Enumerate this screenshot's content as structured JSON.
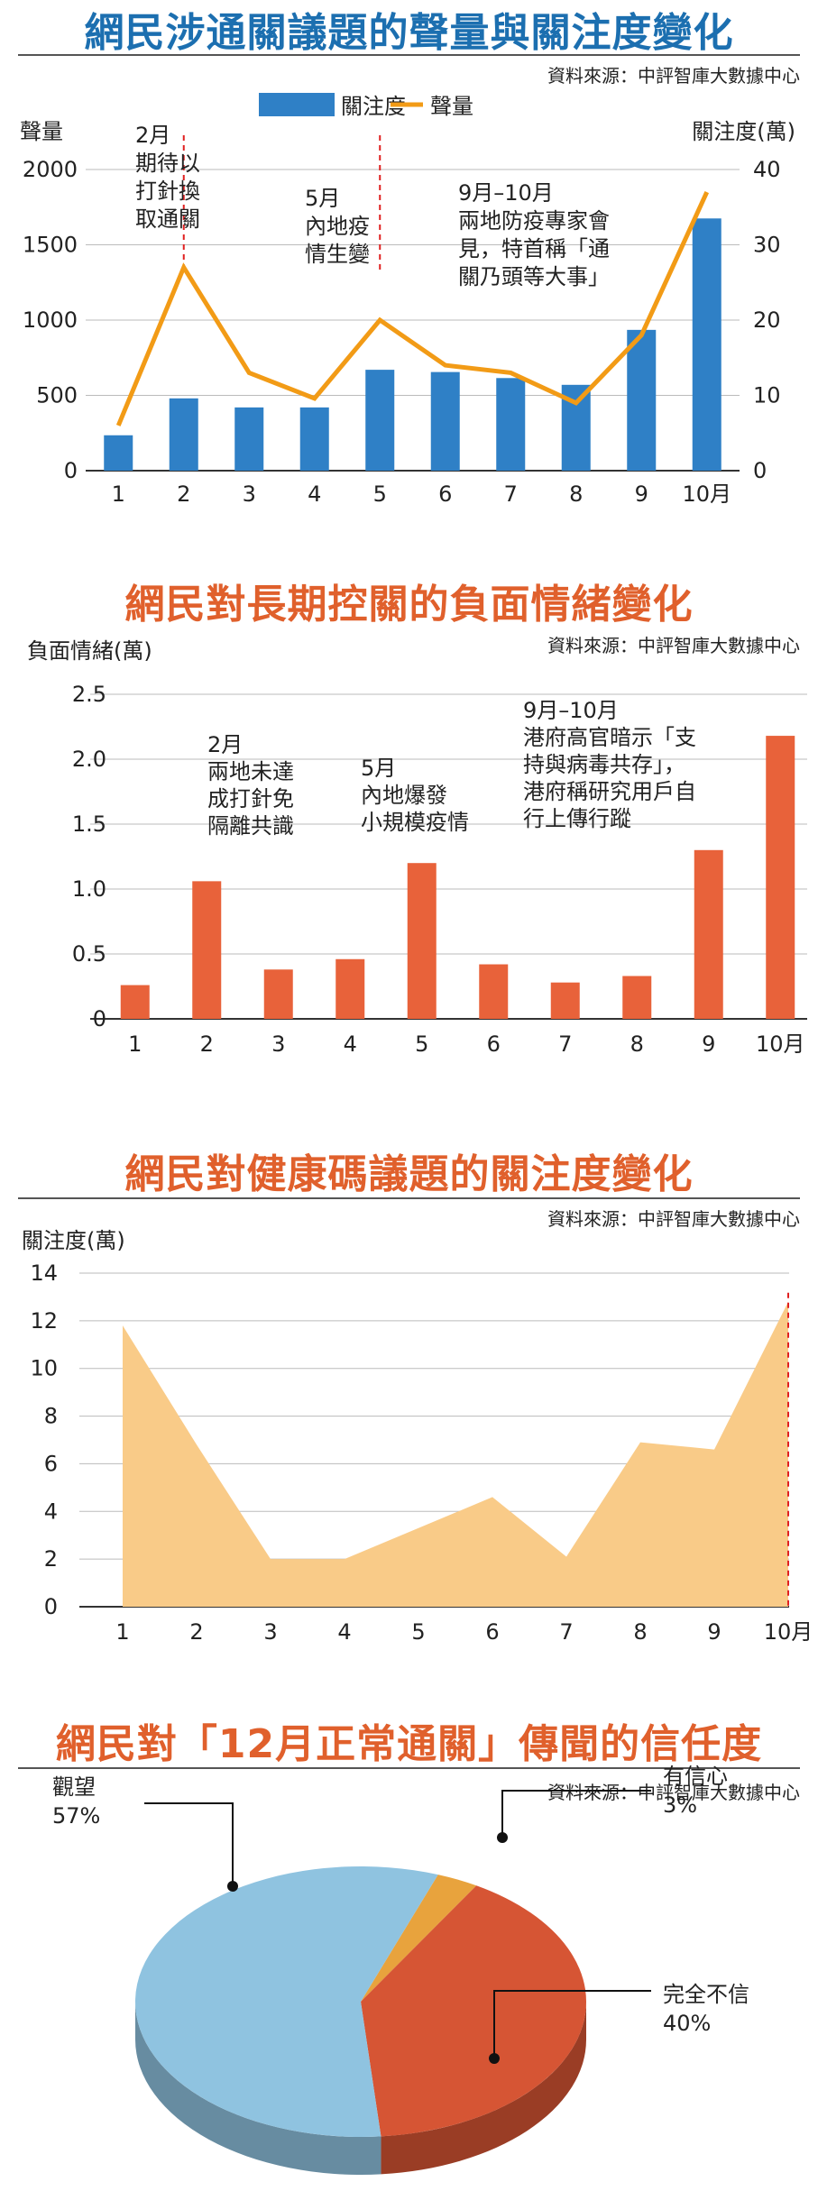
{
  "source": "資料來源：中評智庫大數據中心",
  "chart_data": [
    {
      "type": "bar",
      "title": "網民涉通關議題的聲量與關注度變化",
      "legend": [
        "關注度",
        "聲量"
      ],
      "y_left_label": "聲量",
      "y_right_label": "關注度(萬)",
      "categories": [
        "1",
        "2",
        "3",
        "4",
        "5",
        "6",
        "7",
        "8",
        "9",
        "10月"
      ],
      "left_ticks": [
        "0",
        "500",
        "1000",
        "1500",
        "2000"
      ],
      "right_ticks": [
        "0",
        "10",
        "20",
        "30",
        "40"
      ],
      "ylim_left": [
        0,
        2000
      ],
      "ylim_right": [
        0,
        40
      ],
      "series": [
        {
          "name": "關注度",
          "type": "bar",
          "axis": "right",
          "color": "#2f80c6",
          "values": [
            4.7,
            9.6,
            8.4,
            8.4,
            13.4,
            13.1,
            12.3,
            11.4,
            18.7,
            33.5
          ]
        },
        {
          "name": "聲量",
          "type": "line",
          "axis": "left",
          "color": "#f29b16",
          "values": [
            300,
            1350,
            650,
            480,
            1000,
            700,
            650,
            450,
            900,
            1850
          ]
        }
      ],
      "annotations": [
        {
          "x": "2",
          "lines": [
            "2月",
            "期待以",
            "打針換",
            "取通關"
          ],
          "marker": true
        },
        {
          "x": "5",
          "lines": [
            "5月",
            "內地疫",
            "情生變"
          ],
          "marker": true
        },
        {
          "x": "9",
          "lines": [
            "9月–10月",
            "兩地防疫專家會",
            "見，特首稱「通",
            "關乃頭等大事」"
          ],
          "marker": false
        }
      ],
      "grid": true
    },
    {
      "type": "bar",
      "title": "網民對長期控關的負面情緒變化",
      "ylabel": "負面情緒(萬)",
      "categories": [
        "1",
        "2",
        "3",
        "4",
        "5",
        "6",
        "7",
        "8",
        "9",
        "10月"
      ],
      "ticks": [
        "0",
        "0.5",
        "1.0",
        "1.5",
        "2.0",
        "2.5"
      ],
      "ylim": [
        0,
        2.5
      ],
      "color": "#e8623a",
      "values": [
        0.26,
        1.06,
        0.38,
        0.46,
        1.2,
        0.42,
        0.28,
        0.33,
        1.3,
        2.18
      ],
      "annotations": [
        {
          "x": "2",
          "lines": [
            "2月",
            "兩地未達",
            "成打針免",
            "隔離共識"
          ]
        },
        {
          "x": "5",
          "lines": [
            "5月",
            "內地爆發",
            "小規模疫情"
          ]
        },
        {
          "x": "9",
          "lines": [
            "9月–10月",
            "港府高官暗示「支",
            "持與病毒共存」，",
            "港府稱研究用戶自",
            "行上傳行蹤"
          ]
        }
      ],
      "grid": true
    },
    {
      "type": "area",
      "title": "網民對健康碼議題的關注度變化",
      "ylabel": "關注度(萬)",
      "categories": [
        "1",
        "2",
        "3",
        "4",
        "5",
        "6",
        "7",
        "8",
        "9",
        "10月"
      ],
      "ticks": [
        "0",
        "2",
        "4",
        "6",
        "8",
        "10",
        "12",
        "14"
      ],
      "ylim": [
        0,
        14
      ],
      "color": "#f9cb88",
      "values": [
        11.8,
        6.8,
        2.0,
        2.0,
        3.3,
        4.6,
        2.1,
        6.9,
        6.6,
        12.8
      ],
      "grid": true
    },
    {
      "type": "pie",
      "title": "網民對「12月正常通關」傳聞的信任度",
      "slices": [
        {
          "label": "觀望",
          "pct": "57%",
          "value": 57,
          "color": "#8fc3e0"
        },
        {
          "label": "有信心",
          "pct": "3%",
          "value": 3,
          "color": "#e8a33d"
        },
        {
          "label": "完全不信",
          "pct": "40%",
          "value": 40,
          "color": "#d65534"
        }
      ]
    }
  ]
}
